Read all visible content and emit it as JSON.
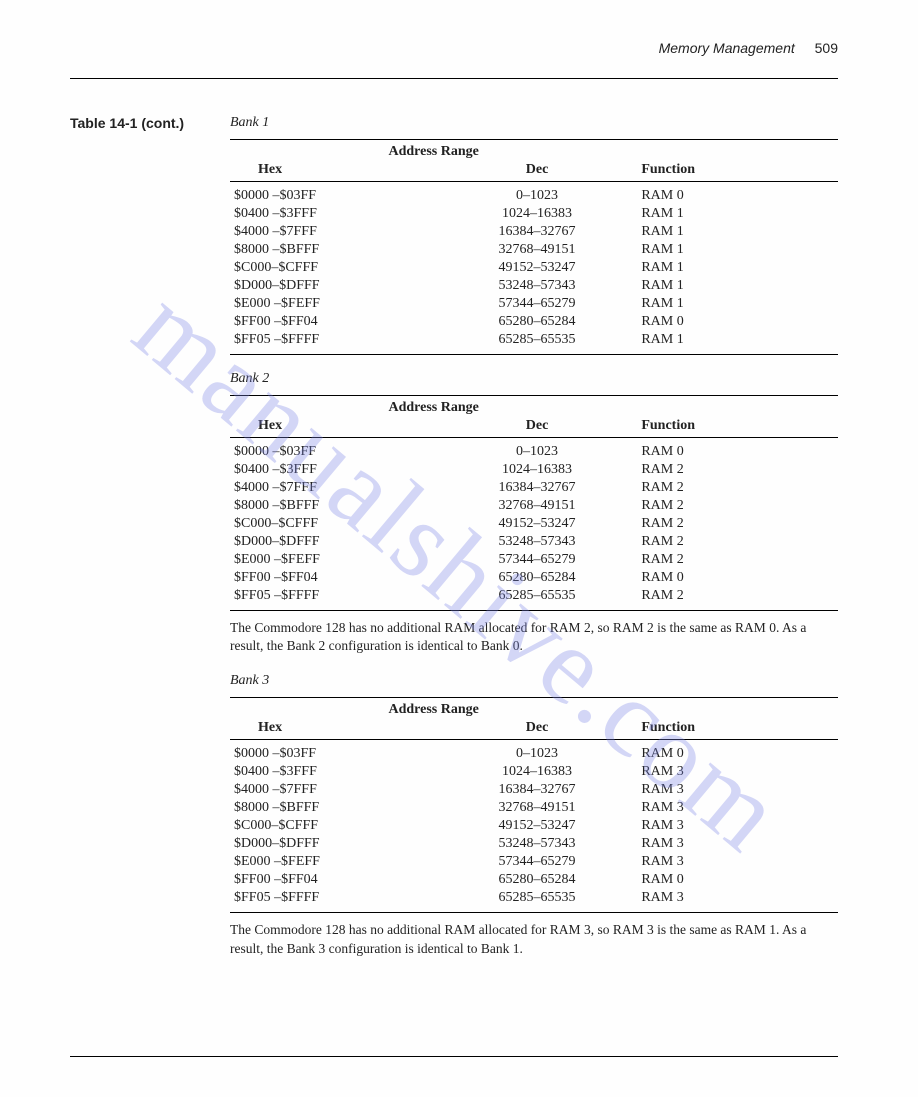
{
  "header": {
    "chapter": "Memory Management",
    "page_number": "509"
  },
  "table_label": "Table 14-1 (cont.)",
  "watermark": "manualshive.com",
  "columns": {
    "group": "Address Range",
    "hex": "Hex",
    "dec": "Dec",
    "func": "Function"
  },
  "banks": [
    {
      "title": "Bank 1",
      "rows": [
        {
          "hex": "$0000 –$03FF",
          "dec": "0–1023",
          "func": "RAM 0"
        },
        {
          "hex": "$0400 –$3FFF",
          "dec": "1024–16383",
          "func": "RAM 1"
        },
        {
          "hex": "$4000 –$7FFF",
          "dec": "16384–32767",
          "func": "RAM 1"
        },
        {
          "hex": "$8000 –$BFFF",
          "dec": "32768–49151",
          "func": "RAM 1"
        },
        {
          "hex": "$C000–$CFFF",
          "dec": "49152–53247",
          "func": "RAM 1"
        },
        {
          "hex": "$D000–$DFFF",
          "dec": "53248–57343",
          "func": "RAM 1"
        },
        {
          "hex": "$E000 –$FEFF",
          "dec": "57344–65279",
          "func": "RAM 1"
        },
        {
          "hex": "$FF00 –$FF04",
          "dec": "65280–65284",
          "func": "RAM 0"
        },
        {
          "hex": "$FF05 –$FFFF",
          "dec": "65285–65535",
          "func": "RAM 1"
        }
      ],
      "note": null
    },
    {
      "title": "Bank 2",
      "rows": [
        {
          "hex": "$0000 –$03FF",
          "dec": "0–1023",
          "func": "RAM 0"
        },
        {
          "hex": "$0400 –$3FFF",
          "dec": "1024–16383",
          "func": "RAM 2"
        },
        {
          "hex": "$4000 –$7FFF",
          "dec": "16384–32767",
          "func": "RAM 2"
        },
        {
          "hex": "$8000 –$BFFF",
          "dec": "32768–49151",
          "func": "RAM 2"
        },
        {
          "hex": "$C000–$CFFF",
          "dec": "49152–53247",
          "func": "RAM 2"
        },
        {
          "hex": "$D000–$DFFF",
          "dec": "53248–57343",
          "func": "RAM 2"
        },
        {
          "hex": "$E000 –$FEFF",
          "dec": "57344–65279",
          "func": "RAM 2"
        },
        {
          "hex": "$FF00 –$FF04",
          "dec": "65280–65284",
          "func": "RAM 0"
        },
        {
          "hex": "$FF05 –$FFFF",
          "dec": "65285–65535",
          "func": "RAM 2"
        }
      ],
      "note": "The Commodore 128 has no additional RAM allocated for RAM 2, so RAM 2 is the same as RAM 0. As a result, the Bank 2 configuration is identical to Bank 0."
    },
    {
      "title": "Bank 3",
      "rows": [
        {
          "hex": "$0000 –$03FF",
          "dec": "0–1023",
          "func": "RAM 0"
        },
        {
          "hex": "$0400 –$3FFF",
          "dec": "1024–16383",
          "func": "RAM 3"
        },
        {
          "hex": "$4000 –$7FFF",
          "dec": "16384–32767",
          "func": "RAM 3"
        },
        {
          "hex": "$8000 –$BFFF",
          "dec": "32768–49151",
          "func": "RAM 3"
        },
        {
          "hex": "$C000–$CFFF",
          "dec": "49152–53247",
          "func": "RAM 3"
        },
        {
          "hex": "$D000–$DFFF",
          "dec": "53248–57343",
          "func": "RAM 3"
        },
        {
          "hex": "$E000 –$FEFF",
          "dec": "57344–65279",
          "func": "RAM 3"
        },
        {
          "hex": "$FF00 –$FF04",
          "dec": "65280–65284",
          "func": "RAM 0"
        },
        {
          "hex": "$FF05 –$FFFF",
          "dec": "65285–65535",
          "func": "RAM 3"
        }
      ],
      "note": "The Commodore 128 has no additional RAM allocated for RAM 3, so RAM 3 is the same as RAM 1. As a result, the Bank 3 configuration is identical to Bank 1."
    }
  ]
}
